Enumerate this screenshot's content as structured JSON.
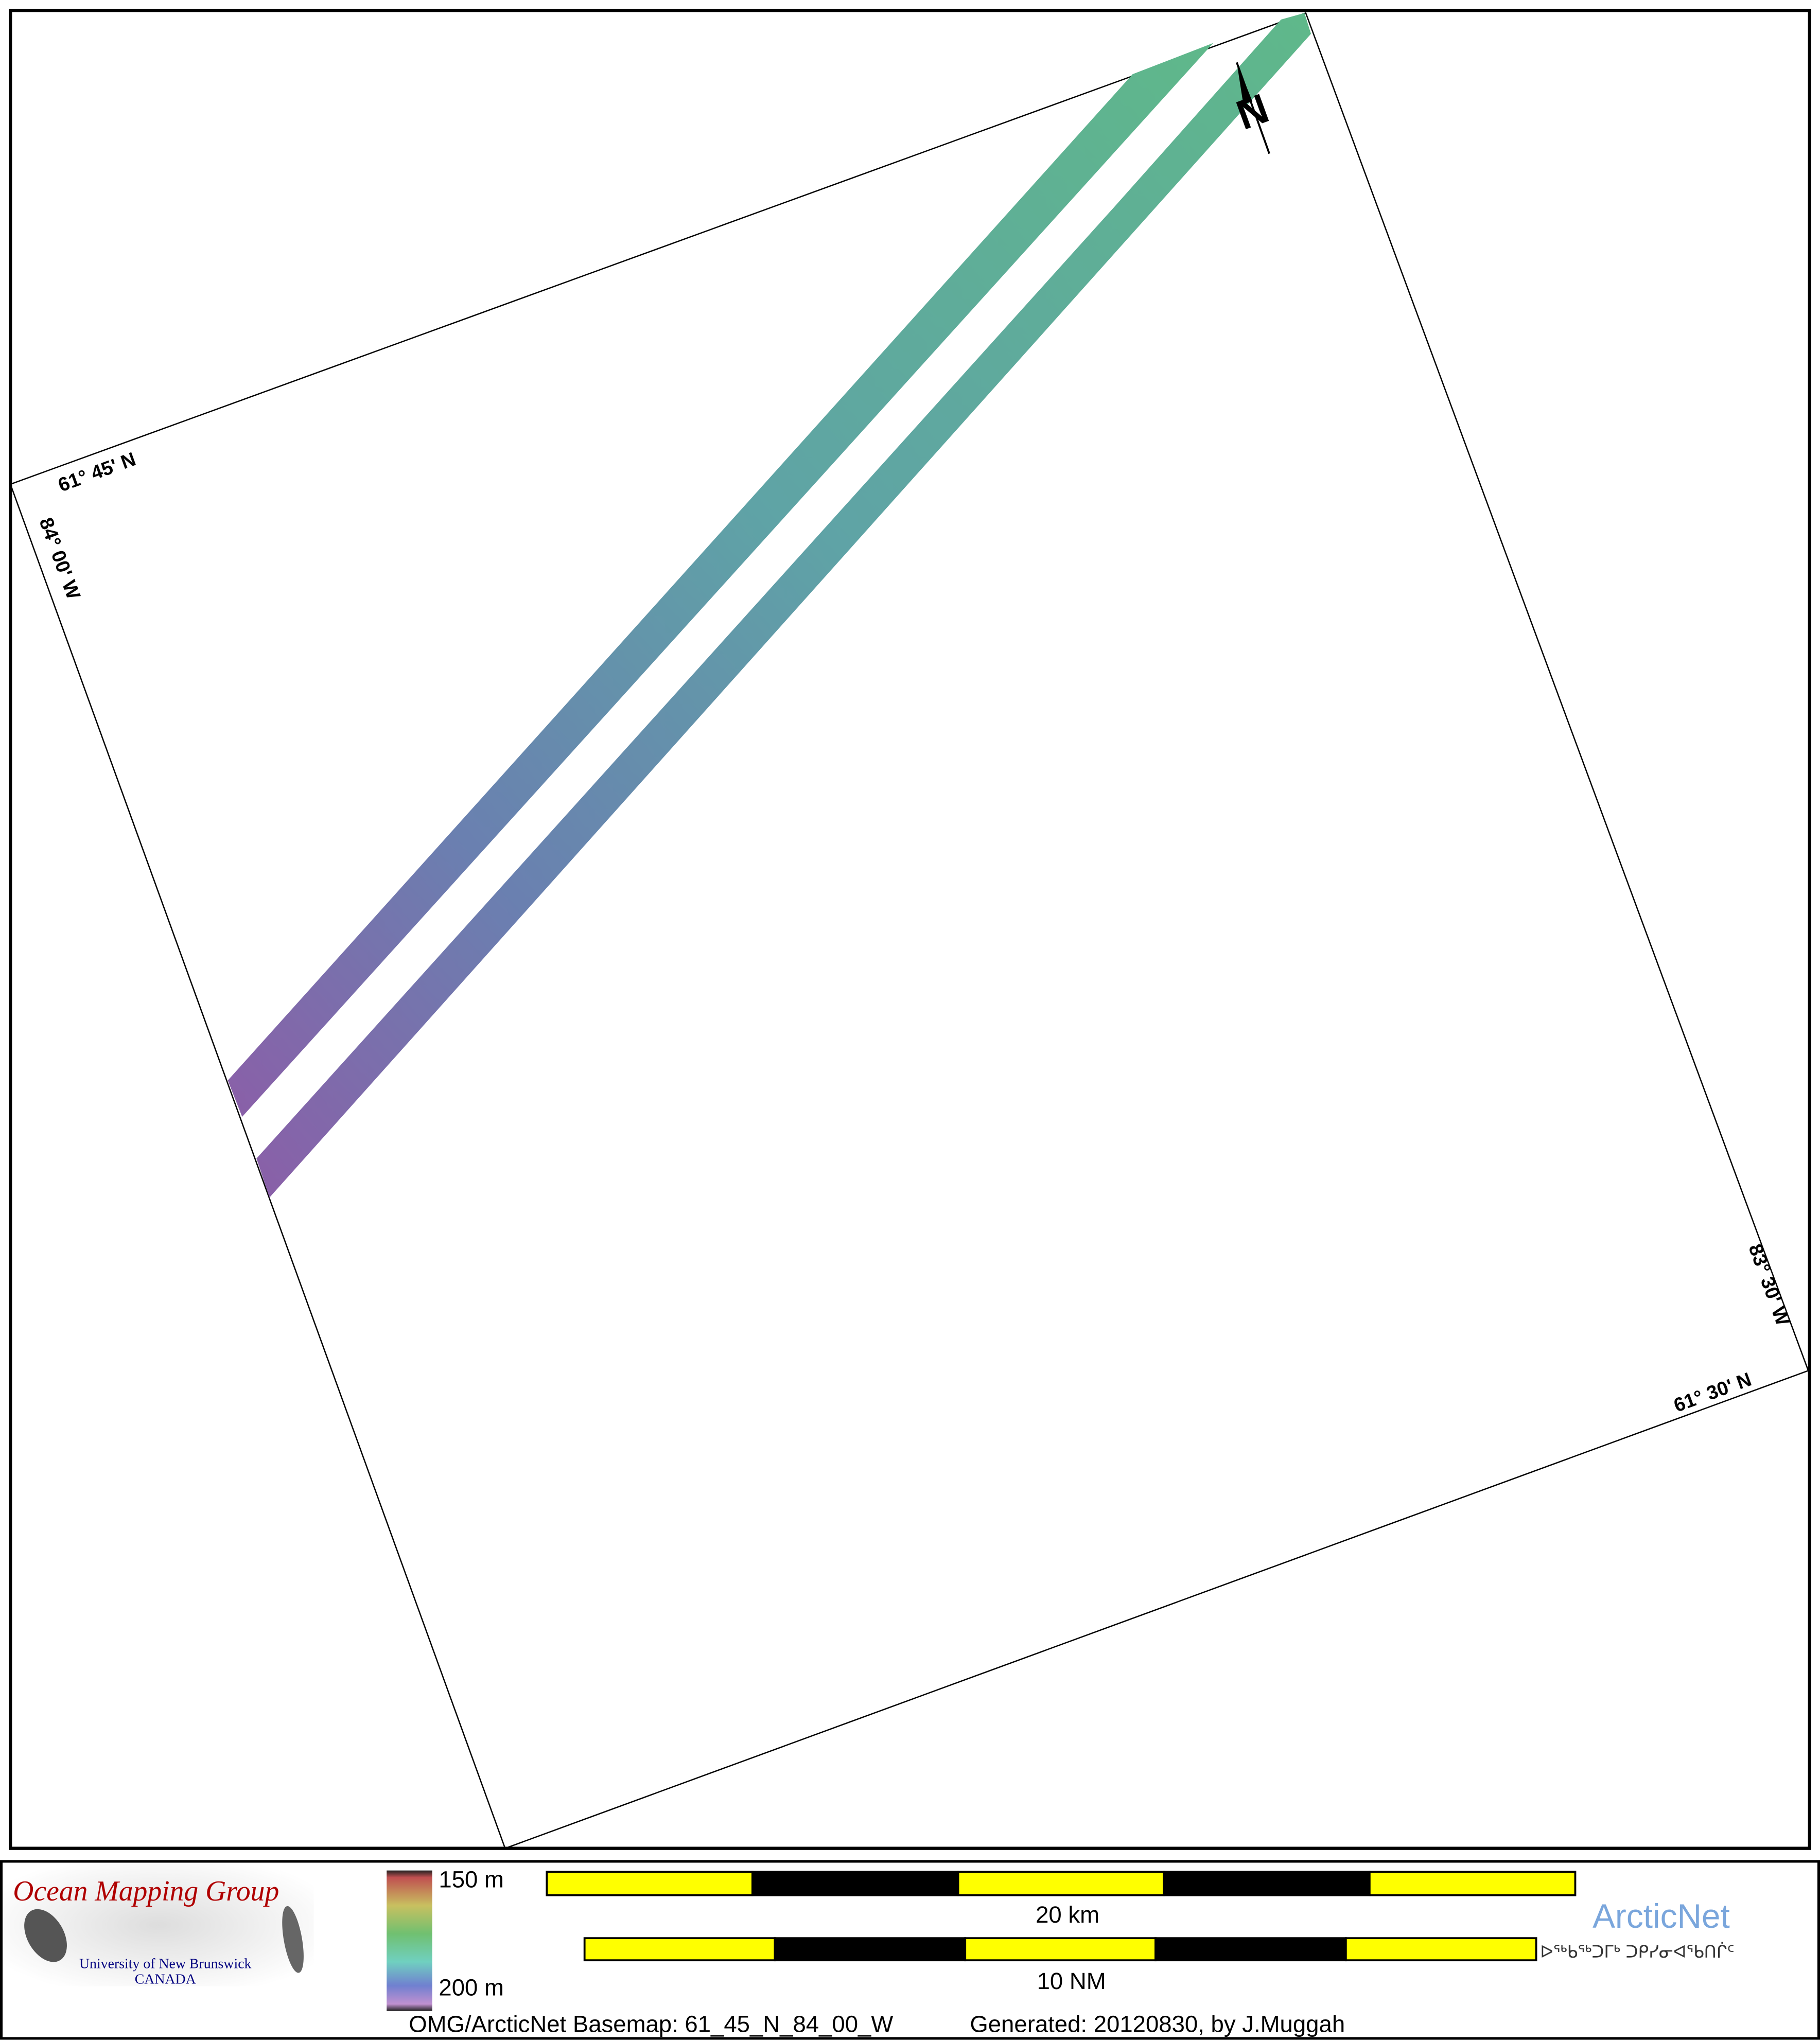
{
  "map": {
    "graticule_labels": {
      "top_left_lat": "61° 45' N",
      "top_left_lon": "84° 00' W",
      "bottom_right_lon": "83° 30' W",
      "bottom_right_lat": "61° 30' N"
    },
    "north_arrow_label": "N",
    "colors": {
      "swath_shallow": "#5fb88a",
      "swath_mid": "#5f9fa8",
      "swath_deep": "#8a5fa8"
    }
  },
  "legend": {
    "logo": {
      "title": "Ocean Mapping Group",
      "subtitle1": "University of New Brunswick",
      "subtitle2": "CANADA",
      "title_color": "#b00000",
      "subtitle_color": "#000080"
    },
    "colorbar": {
      "top_label": "150 m",
      "bottom_label": "200 m"
    },
    "scale_km": {
      "label": "20 km",
      "segments": 5
    },
    "scale_nm": {
      "label": "10 NM",
      "segments": 5
    },
    "arcticnet": {
      "name": "ArcticNet",
      "syllabics": "ᐅᖅᑲᖅᑐᒥᒃ ᑐᑭᓯᓂᐊᖃᑎᒌᑦ",
      "color": "#7aa6dc"
    },
    "footer": {
      "basemap": "OMG/ArcticNet Basemap: 61_45_N_84_00_W",
      "generated": "Generated: 20120830, by J.Muggah"
    }
  }
}
